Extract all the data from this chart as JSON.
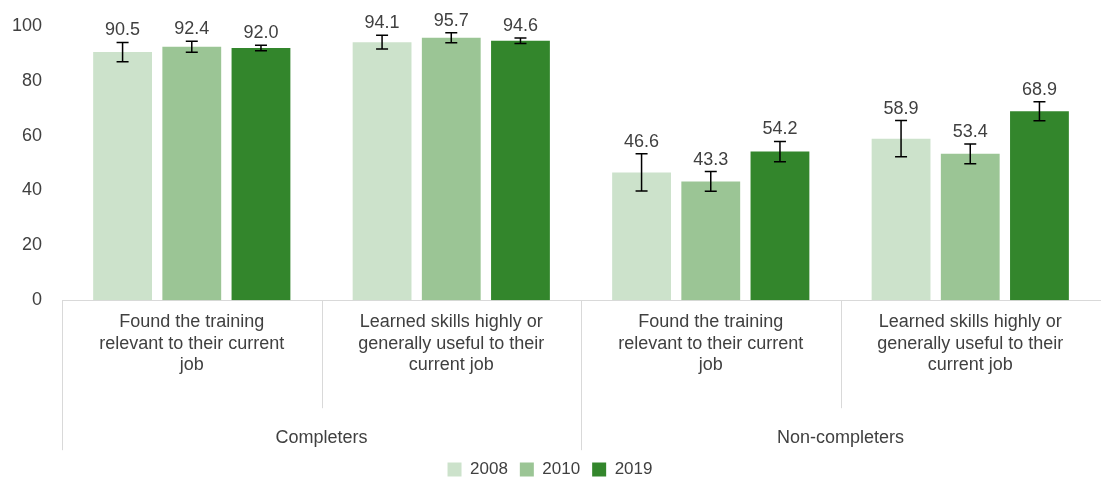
{
  "chart_data": {
    "type": "bar",
    "categories": [
      "Found the training relevant to their current job",
      "Learned skills highly or generally useful to their current job",
      "Found the training relevant to their current job",
      "Learned skills highly or generally useful to their current job"
    ],
    "series": [
      {
        "name": "2008",
        "color": "#cce2cb",
        "values": [
          90.5,
          94.1,
          46.6,
          58.9
        ],
        "value_labels": [
          "90.5",
          "94.1",
          "46.6",
          "58.9"
        ],
        "errors": [
          3.5,
          2.5,
          6.8,
          6.6
        ]
      },
      {
        "name": "2010",
        "color": "#9bc595",
        "values": [
          92.4,
          95.7,
          43.3,
          53.4
        ],
        "value_labels": [
          "92.4",
          "95.7",
          "43.3",
          "53.4"
        ],
        "errors": [
          2,
          1.8,
          3.6,
          3.6
        ]
      },
      {
        "name": "2019",
        "color": "#33862c",
        "values": [
          92.0,
          94.6,
          54.2,
          68.9
        ],
        "value_labels": [
          "92.0",
          "94.6",
          "54.2",
          "68.9"
        ],
        "errors": [
          1,
          1,
          3.7,
          3.5
        ]
      }
    ],
    "annotations": [
      "Completers",
      "Non-completers"
    ],
    "ylim": [
      0,
      100
    ],
    "yticks": [
      0,
      20,
      40,
      60,
      80,
      100
    ],
    "grid": false,
    "legend": "bottom"
  }
}
